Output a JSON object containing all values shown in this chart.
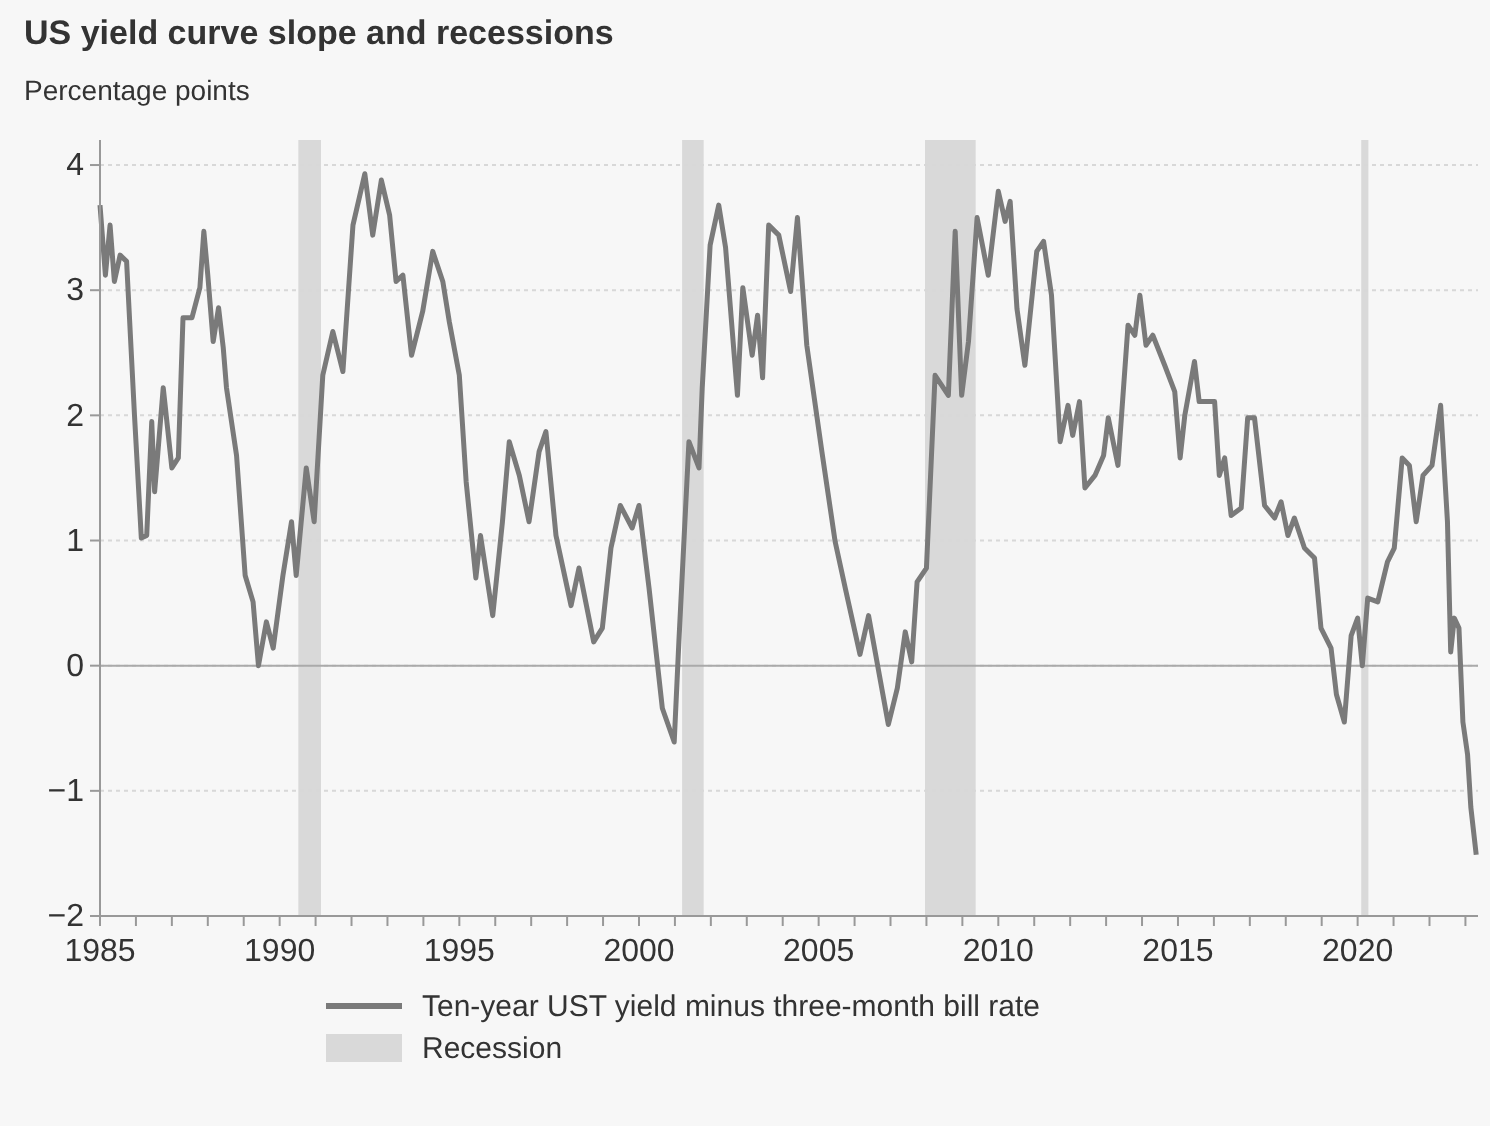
{
  "chart_data": {
    "type": "line",
    "title": "US yield curve slope and recessions",
    "subtitle": "Percentage points",
    "xlim": [
      1985,
      2023.35
    ],
    "ylim": [
      -2,
      4.2
    ],
    "xticks": [
      1985,
      {
        "value": 1986,
        "label": null
      },
      {
        "value": 1987,
        "label": null
      },
      {
        "value": 1988,
        "label": null
      },
      {
        "value": 1989,
        "label": null
      },
      1990,
      {
        "value": 1991,
        "label": null
      },
      {
        "value": 1992,
        "label": null
      },
      {
        "value": 1993,
        "label": null
      },
      {
        "value": 1994,
        "label": null
      },
      1995,
      {
        "value": 1996,
        "label": null
      },
      {
        "value": 1997,
        "label": null
      },
      {
        "value": 1998,
        "label": null
      },
      {
        "value": 1999,
        "label": null
      },
      2000,
      {
        "value": 2001,
        "label": null
      },
      {
        "value": 2002,
        "label": null
      },
      {
        "value": 2003,
        "label": null
      },
      {
        "value": 2004,
        "label": null
      },
      2005,
      {
        "value": 2006,
        "label": null
      },
      {
        "value": 2007,
        "label": null
      },
      {
        "value": 2008,
        "label": null
      },
      {
        "value": 2009,
        "label": null
      },
      2010,
      {
        "value": 2011,
        "label": null
      },
      {
        "value": 2012,
        "label": null
      },
      {
        "value": 2013,
        "label": null
      },
      {
        "value": 2014,
        "label": null
      },
      2015,
      {
        "value": 2016,
        "label": null
      },
      {
        "value": 2017,
        "label": null
      },
      {
        "value": 2018,
        "label": null
      },
      {
        "value": 2019,
        "label": null
      },
      2020,
      {
        "value": 2021,
        "label": null
      },
      {
        "value": 2022,
        "label": null
      },
      {
        "value": 2023,
        "label": null
      }
    ],
    "yticks": [
      -2,
      -1,
      0,
      1,
      2,
      3,
      4
    ],
    "grid": "y",
    "legend": "bottom",
    "series": [
      {
        "name": "Ten-year UST yield minus three-month bill rate",
        "color": "#7a7a7a",
        "x": [
          1985.0,
          1985.15,
          1985.28,
          1985.4,
          1985.56,
          1985.74,
          1985.96,
          1986.15,
          1986.3,
          1986.44,
          1986.52,
          1986.76,
          1987.0,
          1987.18,
          1987.31,
          1987.56,
          1987.78,
          1987.89,
          1988.0,
          1988.15,
          1988.3,
          1988.43,
          1988.52,
          1988.8,
          1989.04,
          1989.26,
          1989.41,
          1989.63,
          1989.82,
          1990.09,
          1990.33,
          1990.46,
          1990.74,
          1990.96,
          1991.2,
          1991.48,
          1991.76,
          1992.04,
          1992.37,
          1992.59,
          1992.83,
          1993.06,
          1993.24,
          1993.43,
          1993.67,
          1993.98,
          1994.26,
          1994.54,
          1994.72,
          1995.0,
          1995.19,
          1995.46,
          1995.59,
          1995.93,
          1996.2,
          1996.39,
          1996.67,
          1996.94,
          1997.22,
          1997.41,
          1997.69,
          1998.11,
          1998.33,
          1998.74,
          1998.98,
          1999.22,
          1999.48,
          1999.81,
          2000.0,
          2000.28,
          2000.65,
          2000.98,
          2001.11,
          2001.39,
          2001.67,
          2001.76,
          2001.98,
          2002.22,
          2002.41,
          2002.74,
          2002.89,
          2003.15,
          2003.3,
          2003.44,
          2003.61,
          2003.89,
          2004.22,
          2004.41,
          2004.67,
          2005.09,
          2005.46,
          2005.74,
          2006.15,
          2006.39,
          2006.94,
          2007.19,
          2007.41,
          2007.59,
          2007.74,
          2008.0,
          2008.24,
          2008.61,
          2008.8,
          2008.98,
          2009.17,
          2009.41,
          2009.72,
          2010.0,
          2010.19,
          2010.33,
          2010.52,
          2010.74,
          2011.07,
          2011.26,
          2011.48,
          2011.72,
          2011.94,
          2012.07,
          2012.26,
          2012.41,
          2012.69,
          2012.93,
          2013.06,
          2013.33,
          2013.61,
          2013.8,
          2013.94,
          2014.11,
          2014.3,
          2014.63,
          2014.91,
          2015.06,
          2015.19,
          2015.46,
          2015.59,
          2016.02,
          2016.15,
          2016.3,
          2016.48,
          2016.76,
          2016.94,
          2017.13,
          2017.41,
          2017.69,
          2017.87,
          2018.06,
          2018.24,
          2018.52,
          2018.8,
          2018.98,
          2019.26,
          2019.41,
          2019.63,
          2019.82,
          2020.0,
          2020.13,
          2020.28,
          2020.56,
          2020.83,
          2021.02,
          2021.24,
          2021.44,
          2021.63,
          2021.82,
          2022.07,
          2022.31,
          2022.5,
          2022.59,
          2022.69,
          2022.82,
          2022.93,
          2023.06,
          2023.15,
          2023.3
        ],
        "values": [
          3.68,
          3.12,
          3.52,
          3.07,
          3.28,
          3.23,
          2.0,
          1.02,
          1.04,
          1.95,
          1.39,
          2.22,
          1.58,
          1.66,
          2.78,
          2.78,
          3.02,
          3.47,
          3.12,
          2.59,
          2.86,
          2.54,
          2.22,
          1.68,
          0.72,
          0.51,
          0.0,
          0.35,
          0.14,
          0.72,
          1.15,
          0.72,
          1.58,
          1.15,
          2.32,
          2.67,
          2.35,
          3.52,
          3.93,
          3.44,
          3.88,
          3.6,
          3.07,
          3.12,
          2.48,
          2.83,
          3.31,
          3.07,
          2.75,
          2.32,
          1.47,
          0.7,
          1.04,
          0.4,
          1.15,
          1.79,
          1.52,
          1.15,
          1.71,
          1.87,
          1.04,
          0.48,
          0.78,
          0.19,
          0.3,
          0.94,
          1.28,
          1.1,
          1.28,
          0.62,
          -0.34,
          -0.61,
          0.19,
          1.79,
          1.58,
          2.22,
          3.36,
          3.68,
          3.34,
          2.16,
          3.02,
          2.48,
          2.8,
          2.3,
          3.52,
          3.44,
          2.99,
          3.58,
          2.56,
          1.71,
          0.99,
          0.62,
          0.09,
          0.4,
          -0.47,
          -0.18,
          0.27,
          0.03,
          0.67,
          0.78,
          2.32,
          2.16,
          3.47,
          2.16,
          2.59,
          3.58,
          3.12,
          3.79,
          3.55,
          3.71,
          2.85,
          2.4,
          3.31,
          3.39,
          2.96,
          1.79,
          2.08,
          1.84,
          2.11,
          1.42,
          1.52,
          1.68,
          1.98,
          1.6,
          2.72,
          2.64,
          2.96,
          2.56,
          2.64,
          2.4,
          2.19,
          1.66,
          2.0,
          2.43,
          2.11,
          2.11,
          1.52,
          1.66,
          1.2,
          1.26,
          1.98,
          1.98,
          1.28,
          1.18,
          1.31,
          1.04,
          1.18,
          0.94,
          0.86,
          0.3,
          0.14,
          -0.23,
          -0.45,
          0.24,
          0.38,
          0.0,
          0.54,
          0.51,
          0.83,
          0.94,
          1.66,
          1.6,
          1.15,
          1.52,
          1.6,
          2.08,
          1.15,
          0.11,
          0.38,
          0.3,
          -0.45,
          -0.71,
          -1.13,
          -1.51
        ]
      }
    ],
    "bands": [
      {
        "axis": "x",
        "from": 1990.52,
        "to": 1991.15,
        "label": "Recession",
        "color": "#d9d9d9"
      },
      {
        "axis": "x",
        "from": 2001.2,
        "to": 2001.8,
        "color": "#d9d9d9"
      },
      {
        "axis": "x",
        "from": 2007.96,
        "to": 2009.37,
        "color": "#d9d9d9"
      },
      {
        "axis": "x",
        "from": 2020.1,
        "to": 2020.3,
        "color": "#d9d9d9"
      }
    ],
    "ref_lines": [
      {
        "axis": "y",
        "value": 0,
        "color": "#aaaaaa"
      }
    ]
  }
}
